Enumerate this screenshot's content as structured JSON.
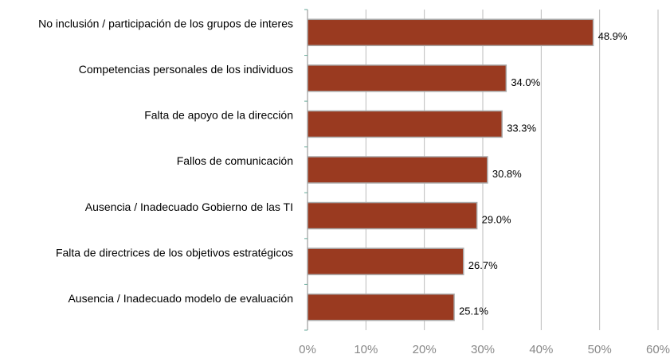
{
  "chart_data": {
    "type": "bar",
    "orientation": "horizontal",
    "categories": [
      "No inclusión / participación de los grupos de interes",
      "Competencias personales de los individuos",
      "Falta de apoyo de la dirección",
      "Fallos de comunicación",
      "Ausencia / Inadecuado Gobierno de las TI",
      "Falta de directrices de los objetivos estratégicos",
      "Ausencia / Inadecuado modelo de evaluación"
    ],
    "values": [
      48.9,
      34.0,
      33.3,
      30.8,
      29.0,
      26.7,
      25.1
    ],
    "value_labels": [
      "48.9%",
      "34.0%",
      "33.3%",
      "30.8%",
      "29.0%",
      "26.7%",
      "25.1%"
    ],
    "color": "#9a3a20",
    "xlim": [
      0,
      60
    ],
    "xticks": [
      {
        "value": 0,
        "label": "0%"
      },
      {
        "value": 10,
        "label": "10%"
      },
      {
        "value": 20,
        "label": "20%"
      },
      {
        "value": 30,
        "label": "30%"
      },
      {
        "value": 40,
        "label": "40%"
      },
      {
        "value": 50,
        "label": "50%"
      },
      {
        "value": 60,
        "label": "60%"
      }
    ],
    "grid": true
  }
}
